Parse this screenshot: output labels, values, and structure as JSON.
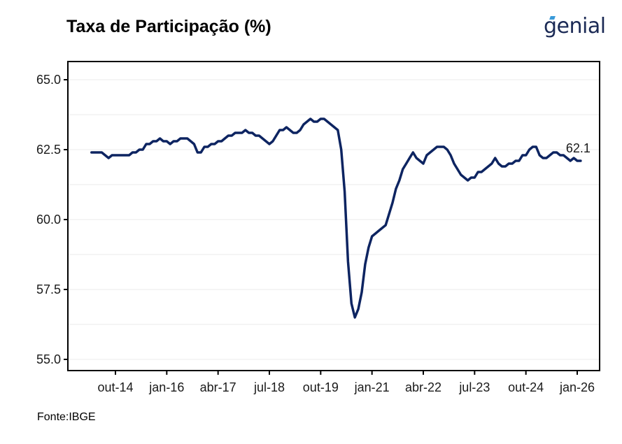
{
  "header": {
    "title": "Taxa de Participação (%)",
    "logo_text": "genial"
  },
  "footer": {
    "source": "Fonte:IBGE"
  },
  "colors": {
    "line": "#0d2461",
    "axis": "#000000",
    "grid": "#ebebeb",
    "logo": "#1b2a55",
    "logo_accent": "#3a9ad9"
  },
  "chart_data": {
    "type": "line",
    "title": "Taxa de Participação (%)",
    "xlabel": "",
    "ylabel": "",
    "ylim": [
      55.0,
      65.0
    ],
    "y_ticks": [
      55.0,
      57.5,
      60.0,
      62.5,
      65.0
    ],
    "y_tick_labels": [
      "55.0",
      "57.5",
      "60.0",
      "62.5",
      "65.0"
    ],
    "x_ticks": [
      "out-14",
      "jan-16",
      "abr-17",
      "jul-18",
      "out-19",
      "jan-21",
      "abr-22",
      "jul-23",
      "out-24",
      "jan-26"
    ],
    "grid": "horizontal",
    "end_label": "62.1",
    "series": [
      {
        "points": [
          [
            "2014-03",
            62.4
          ],
          [
            "2014-04",
            62.4
          ],
          [
            "2014-05",
            62.4
          ],
          [
            "2014-06",
            62.4
          ],
          [
            "2014-07",
            62.3
          ],
          [
            "2014-08",
            62.2
          ],
          [
            "2014-09",
            62.3
          ],
          [
            "2014-10",
            62.3
          ],
          [
            "2014-11",
            62.3
          ],
          [
            "2014-12",
            62.3
          ],
          [
            "2015-01",
            62.3
          ],
          [
            "2015-02",
            62.3
          ],
          [
            "2015-03",
            62.4
          ],
          [
            "2015-04",
            62.4
          ],
          [
            "2015-05",
            62.5
          ],
          [
            "2015-06",
            62.5
          ],
          [
            "2015-07",
            62.7
          ],
          [
            "2015-08",
            62.7
          ],
          [
            "2015-09",
            62.8
          ],
          [
            "2015-10",
            62.8
          ],
          [
            "2015-11",
            62.9
          ],
          [
            "2015-12",
            62.8
          ],
          [
            "2016-01",
            62.8
          ],
          [
            "2016-02",
            62.7
          ],
          [
            "2016-03",
            62.8
          ],
          [
            "2016-04",
            62.8
          ],
          [
            "2016-05",
            62.9
          ],
          [
            "2016-06",
            62.9
          ],
          [
            "2016-07",
            62.9
          ],
          [
            "2016-08",
            62.8
          ],
          [
            "2016-09",
            62.7
          ],
          [
            "2016-10",
            62.4
          ],
          [
            "2016-11",
            62.4
          ],
          [
            "2016-12",
            62.6
          ],
          [
            "2017-01",
            62.6
          ],
          [
            "2017-02",
            62.7
          ],
          [
            "2017-03",
            62.7
          ],
          [
            "2017-04",
            62.8
          ],
          [
            "2017-05",
            62.8
          ],
          [
            "2017-06",
            62.9
          ],
          [
            "2017-07",
            63.0
          ],
          [
            "2017-08",
            63.0
          ],
          [
            "2017-09",
            63.1
          ],
          [
            "2017-10",
            63.1
          ],
          [
            "2017-11",
            63.1
          ],
          [
            "2017-12",
            63.2
          ],
          [
            "2018-01",
            63.1
          ],
          [
            "2018-02",
            63.1
          ],
          [
            "2018-03",
            63.0
          ],
          [
            "2018-04",
            63.0
          ],
          [
            "2018-05",
            62.9
          ],
          [
            "2018-06",
            62.8
          ],
          [
            "2018-07",
            62.7
          ],
          [
            "2018-08",
            62.8
          ],
          [
            "2018-09",
            63.0
          ],
          [
            "2018-10",
            63.2
          ],
          [
            "2018-11",
            63.2
          ],
          [
            "2018-12",
            63.3
          ],
          [
            "2019-01",
            63.2
          ],
          [
            "2019-02",
            63.1
          ],
          [
            "2019-03",
            63.1
          ],
          [
            "2019-04",
            63.2
          ],
          [
            "2019-05",
            63.4
          ],
          [
            "2019-06",
            63.5
          ],
          [
            "2019-07",
            63.6
          ],
          [
            "2019-08",
            63.5
          ],
          [
            "2019-09",
            63.5
          ],
          [
            "2019-10",
            63.6
          ],
          [
            "2019-11",
            63.6
          ],
          [
            "2019-12",
            63.5
          ],
          [
            "2020-01",
            63.4
          ],
          [
            "2020-02",
            63.3
          ],
          [
            "2020-03",
            63.2
          ],
          [
            "2020-04",
            62.5
          ],
          [
            "2020-05",
            61.0
          ],
          [
            "2020-06",
            58.5
          ],
          [
            "2020-07",
            57.0
          ],
          [
            "2020-08",
            56.5
          ],
          [
            "2020-09",
            56.8
          ],
          [
            "2020-10",
            57.4
          ],
          [
            "2020-11",
            58.4
          ],
          [
            "2020-12",
            59.0
          ],
          [
            "2021-01",
            59.4
          ],
          [
            "2021-02",
            59.5
          ],
          [
            "2021-03",
            59.6
          ],
          [
            "2021-04",
            59.7
          ],
          [
            "2021-05",
            59.8
          ],
          [
            "2021-06",
            60.2
          ],
          [
            "2021-07",
            60.6
          ],
          [
            "2021-08",
            61.1
          ],
          [
            "2021-09",
            61.4
          ],
          [
            "2021-10",
            61.8
          ],
          [
            "2021-11",
            62.0
          ],
          [
            "2021-12",
            62.2
          ],
          [
            "2022-01",
            62.4
          ],
          [
            "2022-02",
            62.2
          ],
          [
            "2022-03",
            62.1
          ],
          [
            "2022-04",
            62.0
          ],
          [
            "2022-05",
            62.3
          ],
          [
            "2022-06",
            62.4
          ],
          [
            "2022-07",
            62.5
          ],
          [
            "2022-08",
            62.6
          ],
          [
            "2022-09",
            62.6
          ],
          [
            "2022-10",
            62.6
          ],
          [
            "2022-11",
            62.5
          ],
          [
            "2022-12",
            62.3
          ],
          [
            "2023-01",
            62.0
          ],
          [
            "2023-02",
            61.8
          ],
          [
            "2023-03",
            61.6
          ],
          [
            "2023-04",
            61.5
          ],
          [
            "2023-05",
            61.4
          ],
          [
            "2023-06",
            61.5
          ],
          [
            "2023-07",
            61.5
          ],
          [
            "2023-08",
            61.7
          ],
          [
            "2023-09",
            61.7
          ],
          [
            "2023-10",
            61.8
          ],
          [
            "2023-11",
            61.9
          ],
          [
            "2023-12",
            62.0
          ],
          [
            "2024-01",
            62.2
          ],
          [
            "2024-02",
            62.0
          ],
          [
            "2024-03",
            61.9
          ],
          [
            "2024-04",
            61.9
          ],
          [
            "2024-05",
            62.0
          ],
          [
            "2024-06",
            62.0
          ],
          [
            "2024-07",
            62.1
          ],
          [
            "2024-08",
            62.1
          ],
          [
            "2024-09",
            62.3
          ],
          [
            "2024-10",
            62.3
          ],
          [
            "2024-11",
            62.5
          ],
          [
            "2024-12",
            62.6
          ],
          [
            "2025-01",
            62.6
          ],
          [
            "2025-02",
            62.3
          ],
          [
            "2025-03",
            62.2
          ],
          [
            "2025-04",
            62.2
          ],
          [
            "2025-05",
            62.3
          ],
          [
            "2025-06",
            62.4
          ],
          [
            "2025-07",
            62.4
          ],
          [
            "2025-08",
            62.3
          ],
          [
            "2025-09",
            62.3
          ],
          [
            "2025-10",
            62.2
          ],
          [
            "2025-11",
            62.1
          ],
          [
            "2025-12",
            62.2
          ],
          [
            "2026-01",
            62.1
          ],
          [
            "2026-02",
            62.1
          ]
        ]
      }
    ]
  }
}
